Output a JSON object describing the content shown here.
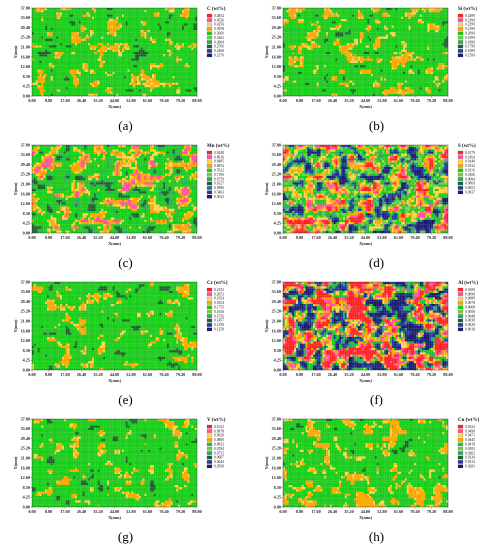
{
  "figure": {
    "panels": [
      {
        "id": "a",
        "caption": "(a)",
        "colorscale": "low",
        "chart_data": {
          "type": "heatmap",
          "title": "C (wt%)",
          "xlabel": "X(mm)",
          "ylabel": "Y(mm)",
          "x_ticks": [
            "0.00",
            "8.80",
            "17.60",
            "26.40",
            "35.20",
            "44.00",
            "52.80",
            "61.60",
            "70.40",
            "79.20",
            "88.00"
          ],
          "y_ticks": [
            "0.00",
            "4.25",
            "8.50",
            "12.60",
            "16.80",
            "21.00",
            "25.20",
            "29.40",
            "33.60",
            "37.80"
          ],
          "legend_levels": [
            "0.4854",
            "0.4556",
            "0.4256",
            "0.3958",
            "0.3660",
            "0.3362",
            "0.3064",
            "0.2766",
            "0.2468",
            "0.2170"
          ],
          "legend_colors": [
            "#ff2222",
            "#ff4fa0",
            "#ffd24a",
            "#ffa500",
            "#19cc19",
            "#71d23f",
            "#2aa866",
            "#1f5f2d",
            "#263a9a",
            "#1c1c6e"
          ]
        }
      },
      {
        "id": "b",
        "caption": "(b)",
        "colorscale": "low",
        "chart_data": {
          "type": "heatmap",
          "title": "Si (wt%)",
          "xlabel": "X(mm)",
          "ylabel": "Y(mm)",
          "x_ticks": [
            "0.00",
            "8.80",
            "17.60",
            "26.40",
            "35.20",
            "44.00",
            "52.80",
            "61.60",
            "70.40",
            "79.20",
            "88.00"
          ],
          "y_ticks": [
            "0.00",
            "4.25",
            "8.50",
            "12.60",
            "16.80",
            "21.00",
            "25.20",
            "29.40",
            "33.60",
            "37.80"
          ],
          "legend_levels": [
            "0.2499",
            "0.2399",
            "0.2299",
            "0.2199",
            "0.2099",
            "0.1999",
            "0.1899",
            "0.1799",
            "0.1699",
            "0.1599"
          ],
          "legend_colors": [
            "#ff2222",
            "#ff4fa0",
            "#ffd24a",
            "#ffa500",
            "#19cc19",
            "#71d23f",
            "#2aa866",
            "#1f5f2d",
            "#263a9a",
            "#1c1c6e"
          ]
        }
      },
      {
        "id": "c",
        "caption": "(c)",
        "colorscale": "mid",
        "chart_data": {
          "type": "heatmap",
          "title": "Mn (wt%)",
          "xlabel": "X(mm)",
          "ylabel": "Y(mm)",
          "x_ticks": [
            "0.00",
            "8.80",
            "17.60",
            "26.40",
            "35.20",
            "44.00",
            "52.80",
            "61.60",
            "70.40",
            "79.20",
            "88.00"
          ],
          "y_ticks": [
            "0.00",
            "4.25",
            "8.50",
            "12.60",
            "16.80",
            "21.00",
            "25.20",
            "29.40",
            "33.60",
            "37.80"
          ],
          "legend_levels": [
            "0.9248",
            "0.8916",
            "0.8485",
            "0.8054",
            "0.7622",
            "0.7190",
            "0.6759",
            "0.6327",
            "0.5896",
            "0.5463",
            "0.5032"
          ],
          "legend_colors": [
            "#ff2222",
            "#ff4fa0",
            "#ffd24a",
            "#ffa500",
            "#19cc19",
            "#71d23f",
            "#2aa866",
            "#1f5f2d",
            "#2a6fb0",
            "#263a9a",
            "#1c1c6e"
          ]
        }
      },
      {
        "id": "d",
        "caption": "(d)",
        "colorscale": "high",
        "chart_data": {
          "type": "heatmap",
          "title": "S (wt%)",
          "xlabel": "X(mm)",
          "ylabel": "Y(mm)",
          "x_ticks": [
            "0.00",
            "8.80",
            "17.60",
            "26.40",
            "35.20",
            "44.00",
            "52.80",
            "61.60",
            "70.40",
            "79.20",
            "88.00"
          ],
          "y_ticks": [
            "0.00",
            "4.25",
            "8.50",
            "12.60",
            "16.80",
            "21.00",
            "25.20",
            "29.40",
            "33.60",
            "37.80"
          ],
          "legend_levels": [
            "0.0179",
            "0.0164",
            "0.0148",
            "0.0132",
            "0.0116",
            "0.0100",
            "0.0084",
            "0.0069",
            "0.0053",
            "0.0037"
          ],
          "legend_colors": [
            "#ff2222",
            "#ff4fa0",
            "#ffd24a",
            "#ffa500",
            "#19cc19",
            "#71d23f",
            "#2aa866",
            "#1f5f2d",
            "#263a9a",
            "#1c1c6e"
          ]
        }
      },
      {
        "id": "e",
        "caption": "(e)",
        "colorscale": "low",
        "chart_data": {
          "type": "heatmap",
          "title": "Cr (wt%)",
          "xlabel": "X(mm)",
          "ylabel": "Y(mm)",
          "x_ticks": [
            "0.00",
            "8.80",
            "17.60",
            "26.40",
            "35.20",
            "44.00",
            "52.80",
            "61.60",
            "70.40",
            "79.20",
            "88.00"
          ],
          "y_ticks": [
            "0.00",
            "4.25",
            "8.50",
            "12.60",
            "16.80",
            "21.00",
            "25.20",
            "29.40",
            "33.60",
            "37.80"
          ],
          "legend_levels": [
            "0.2152",
            "0.2053",
            "0.1954",
            "0.1854",
            "0.1755",
            "0.1656",
            "0.1556",
            "0.1457",
            "0.1358",
            "0.1258"
          ],
          "legend_colors": [
            "#ff2222",
            "#ff4fa0",
            "#ffd24a",
            "#ffa500",
            "#19cc19",
            "#71d23f",
            "#2aa866",
            "#1f5f2d",
            "#263a9a",
            "#1c1c6e"
          ]
        }
      },
      {
        "id": "f",
        "caption": "(f)",
        "colorscale": "veryhigh",
        "chart_data": {
          "type": "heatmap",
          "title": "Al (wt%)",
          "xlabel": "X(mm)",
          "ylabel": "Y(mm)",
          "x_ticks": [
            "0.00",
            "8.80",
            "17.60",
            "26.40",
            "35.20",
            "44.00",
            "52.80",
            "61.60",
            "70.40",
            "79.20",
            "88.00"
          ],
          "y_ticks": [
            "0.00",
            "4.25",
            "8.50",
            "12.60",
            "16.80",
            "21.00",
            "25.20",
            "29.40",
            "33.60",
            "37.80"
          ],
          "legend_levels": [
            "0.0108",
            "0.0098",
            "0.0088",
            "0.0078",
            "0.0068",
            "0.0058",
            "0.0048",
            "0.0038",
            "0.0028",
            "0.0018"
          ],
          "legend_colors": [
            "#ff2222",
            "#ff4fa0",
            "#ffd24a",
            "#ffa500",
            "#19cc19",
            "#71d23f",
            "#2aa866",
            "#1f5f2d",
            "#263a9a",
            "#1c1c6e"
          ]
        }
      },
      {
        "id": "g",
        "caption": "(g)",
        "colorscale": "low",
        "chart_data": {
          "type": "heatmap",
          "title": "V (wt%)",
          "xlabel": "X(mm)",
          "ylabel": "Y(mm)",
          "x_ticks": [
            "0.00",
            "8.80",
            "17.60",
            "26.40",
            "35.20",
            "44.00",
            "52.80",
            "61.60",
            "70.40",
            "79.20",
            "88.00"
          ],
          "y_ticks": [
            "0.00",
            "4.25",
            "8.50",
            "12.60",
            "16.80",
            "21.00",
            "25.20",
            "29.40",
            "33.60",
            "37.80"
          ],
          "legend_levels": [
            "0.1022",
            "0.0978",
            "0.0928",
            "0.0880",
            "0.0832",
            "0.0784",
            "0.0735",
            "0.0687",
            "0.0644",
            "0.0598"
          ],
          "legend_colors": [
            "#ff2222",
            "#ff4fa0",
            "#ffd24a",
            "#ffa500",
            "#19cc19",
            "#71d23f",
            "#2aa866",
            "#1f5f2d",
            "#263a9a",
            "#1c1c6e"
          ]
        }
      },
      {
        "id": "h",
        "caption": "(h)",
        "colorscale": "lowerhalf",
        "chart_data": {
          "type": "heatmap",
          "title": "Cu (wt%)",
          "xlabel": "X(mm)",
          "ylabel": "Y(mm)",
          "x_ticks": [
            "0.00",
            "8.80",
            "17.60",
            "26.40",
            "35.20",
            "44.00",
            "52.80",
            "61.60",
            "70.40",
            "79.20",
            "88.00"
          ],
          "y_ticks": [
            "0.00",
            "4.25",
            "8.50",
            "12.60",
            "16.80",
            "21.00",
            "25.20",
            "29.40",
            "33.60",
            "37.80"
          ],
          "legend_levels": [
            "0.0524",
            "0.0498",
            "0.0471",
            "0.0445",
            "0.0418",
            "0.0392",
            "0.0365",
            "0.0339",
            "0.0312",
            "0.0283"
          ],
          "legend_colors": [
            "#ff2222",
            "#ff4fa0",
            "#ffd24a",
            "#ffa500",
            "#19cc19",
            "#71d23f",
            "#2aa866",
            "#1f5f2d",
            "#263a9a",
            "#1c1c6e"
          ]
        }
      }
    ]
  }
}
